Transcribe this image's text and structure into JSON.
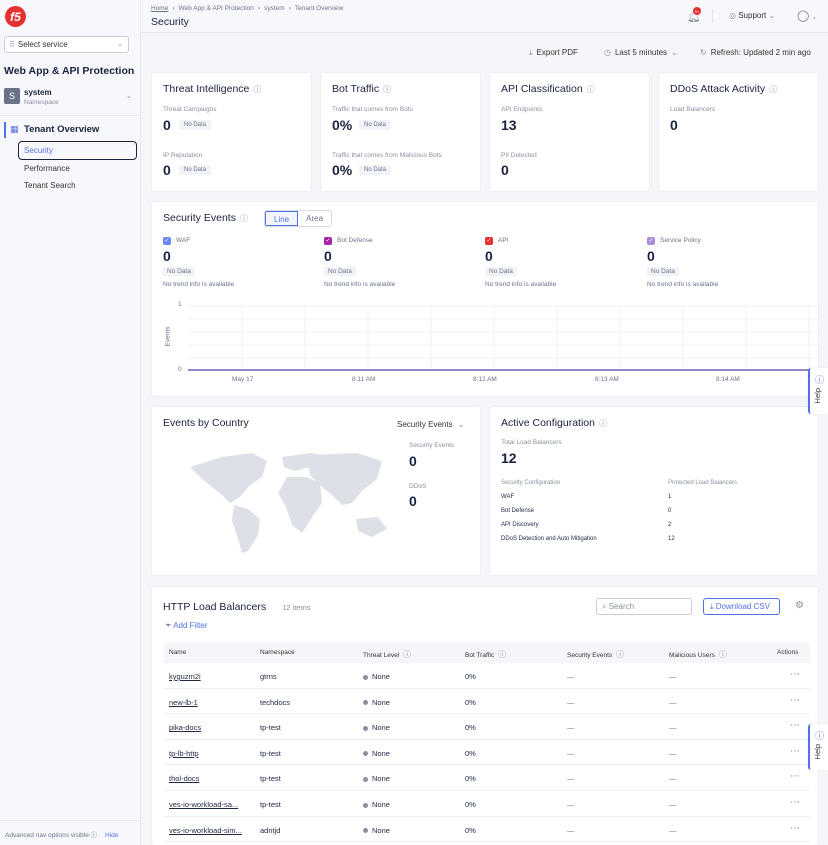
{
  "sidebar": {
    "logo": "f5",
    "service_select": "Select service",
    "app_title": "Web App & API Protection",
    "namespace": {
      "avatar": "S",
      "name": "system",
      "label": "Namespace"
    },
    "nav_group": "Tenant Overview",
    "items": [
      {
        "label": "Security"
      },
      {
        "label": "Performance"
      },
      {
        "label": "Tenant Search"
      }
    ],
    "footer": {
      "text": "Advanced nav options visible",
      "hide": "Hide"
    }
  },
  "header": {
    "breadcrumbs": [
      "Home",
      "Web App & API Protection",
      "system",
      "Tenant Overview"
    ],
    "title": "Security",
    "notification_badge": "9+",
    "support": "Support"
  },
  "toolbar": {
    "export": "Export PDF",
    "time_range": "Last 5 minutes",
    "refresh": "Refresh: Updated 2 min ago"
  },
  "summary_cards": [
    {
      "title": "Threat Intelligence",
      "metrics": [
        {
          "label": "Threat Campaigns",
          "value": "0",
          "badge": "No Data"
        },
        {
          "label": "IP Reputation",
          "value": "0",
          "badge": "No Data"
        }
      ]
    },
    {
      "title": "Bot Traffic",
      "metrics": [
        {
          "label": "Traffic that comes from Bots",
          "value": "0%",
          "badge": "No Data"
        },
        {
          "label": "Traffic that comes from Malicious Bots",
          "value": "0%",
          "badge": "No Data"
        }
      ]
    },
    {
      "title": "API Classification",
      "metrics": [
        {
          "label": "API Endpoints",
          "value": "13"
        },
        {
          "label": "PII Detected",
          "value": "0"
        }
      ]
    },
    {
      "title": "DDoS Attack Activity",
      "metrics": [
        {
          "label": "Load Balancers",
          "value": "0"
        }
      ]
    }
  ],
  "security_events": {
    "title": "Security Events",
    "toggle": [
      "Line",
      "Area"
    ],
    "series": [
      {
        "name": "WAF",
        "value": "0",
        "badge": "No Data",
        "trend": "No trend info is available",
        "color": "#6e86f0"
      },
      {
        "name": "Bot Defense",
        "value": "0",
        "badge": "No Data",
        "trend": "No trend info is available",
        "color": "#a326a8"
      },
      {
        "name": "API",
        "value": "0",
        "badge": "No Data",
        "trend": "No trend info is available",
        "color": "#e4312f"
      },
      {
        "name": "Service Policy",
        "value": "0",
        "badge": "No Data",
        "trend": "No trend info is available",
        "color": "#a98fd6"
      }
    ],
    "chart": {
      "ylabel": "Events",
      "y_ticks": [
        "1",
        "0"
      ],
      "x_ticks": [
        "May 17",
        "8:11 AM",
        "8:12 AM",
        "8:13 AM",
        "8:14 AM"
      ]
    }
  },
  "events_by_country": {
    "title": "Events by Country",
    "dropdown": "Security Events",
    "stats": [
      {
        "label": "Security Events",
        "value": "0"
      },
      {
        "label": "DDoS",
        "value": "0"
      }
    ]
  },
  "active_configuration": {
    "title": "Active Configuration",
    "total_label": "Total Load Balancers",
    "total_value": "12",
    "col_headers": [
      "Security Configuration",
      "Protected Load Balancers"
    ],
    "rows": [
      {
        "name": "WAF",
        "value": "1"
      },
      {
        "name": "Bot Defense",
        "value": "0"
      },
      {
        "name": "API Discovery",
        "value": "2"
      },
      {
        "name": "DDoS Detection and Auto Mitigation",
        "value": "12"
      }
    ]
  },
  "load_balancers": {
    "title": "HTTP Load Balancers",
    "count": "12 items",
    "search_placeholder": "Search",
    "download": "Download CSV",
    "add_filter": "Add Filter",
    "columns": [
      "Name",
      "Namespace",
      "Threat Level",
      "Bot Traffic",
      "Security Events",
      "Malicious Users",
      "Actions"
    ],
    "rows": [
      {
        "name": "kyguzm2i",
        "namespace": "gtrns",
        "threat": "None",
        "bot": "0%",
        "events": "—",
        "users": "—"
      },
      {
        "name": "new-lb-1",
        "namespace": "techdocs",
        "threat": "None",
        "bot": "0%",
        "events": "—",
        "users": "—"
      },
      {
        "name": "pika-docs",
        "namespace": "tp-test",
        "threat": "None",
        "bot": "0%",
        "events": "—",
        "users": "—"
      },
      {
        "name": "tp-lb-http",
        "namespace": "tp-test",
        "threat": "None",
        "bot": "0%",
        "events": "—",
        "users": "—"
      },
      {
        "name": "thol-docs",
        "namespace": "tp-test",
        "threat": "None",
        "bot": "0%",
        "events": "—",
        "users": "—"
      },
      {
        "name": "ves-io-workload-sa...",
        "namespace": "tp-test",
        "threat": "None",
        "bot": "0%",
        "events": "—",
        "users": "—"
      },
      {
        "name": "ves-io-workload-sim...",
        "namespace": "adntjd",
        "threat": "None",
        "bot": "0%",
        "events": "—",
        "users": "—"
      }
    ]
  },
  "help": "Help"
}
